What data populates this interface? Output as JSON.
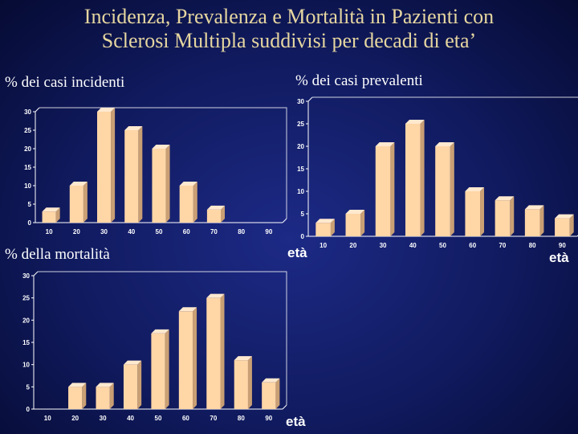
{
  "title": "Incidenza, Prevalenza e Mortalità in Pazienti con\nSclerosi Multipla  suddivisi per decadi di eta’",
  "colors": {
    "bar_front": "#ffd6a6",
    "bar_side": "#c99f74",
    "bar_top": "#ffe9cf",
    "axis": "#ffffff",
    "background": "#101a5e"
  },
  "chart_data": [
    {
      "type": "bar",
      "title": "% dei casi incidenti",
      "xlabel": "",
      "unit_label": "età",
      "categories": [
        "10",
        "20",
        "30",
        "40",
        "50",
        "60",
        "70",
        "80",
        "90"
      ],
      "values": [
        3,
        10,
        30,
        25,
        20,
        10,
        3.5,
        0,
        0
      ],
      "yticks": [
        "0",
        "5",
        "10",
        "15",
        "20",
        "25",
        "30"
      ],
      "ylim": [
        0,
        30
      ],
      "grid": false
    },
    {
      "type": "bar",
      "title": "% dei casi prevalenti",
      "xlabel": "",
      "unit_label": "età",
      "categories": [
        "10",
        "20",
        "30",
        "40",
        "50",
        "60",
        "70",
        "80",
        "90"
      ],
      "values": [
        3,
        5,
        20,
        25,
        20,
        10,
        8,
        6,
        4
      ],
      "yticks": [
        "0",
        "5",
        "10",
        "15",
        "20",
        "25",
        "30"
      ],
      "ylim": [
        0,
        30
      ],
      "grid": false
    },
    {
      "type": "bar",
      "title": "% della mortalità",
      "xlabel": "",
      "unit_label": "età",
      "categories": [
        "10",
        "20",
        "30",
        "40",
        "50",
        "60",
        "70",
        "80",
        "90"
      ],
      "values": [
        0,
        5,
        5,
        10,
        17,
        22,
        25,
        11,
        6
      ],
      "yticks": [
        "0",
        "5",
        "10",
        "15",
        "20",
        "25",
        "30"
      ],
      "ylim": [
        0,
        30
      ],
      "grid": false
    }
  ]
}
